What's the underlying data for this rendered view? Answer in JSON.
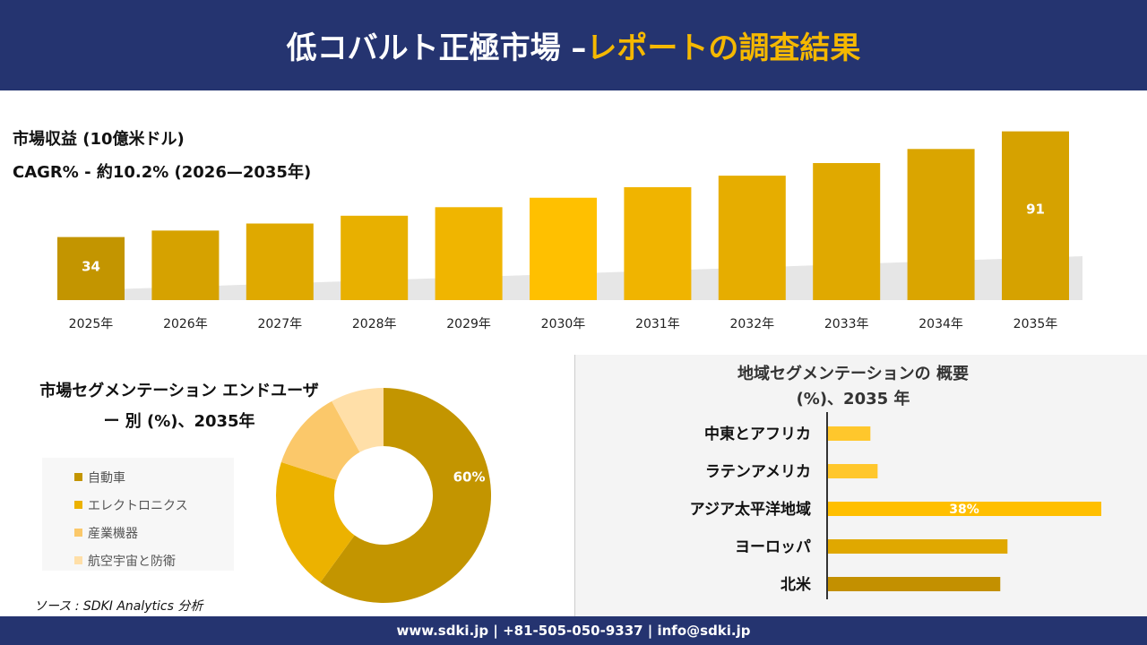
{
  "header": {
    "title_main": "低コバルト正極市場 –",
    "title_accent": "レポートの調査結果"
  },
  "top": {
    "label1": "市場収益 (10億米ドル)",
    "label2": "CAGR% - 約10.2% (2026—2035年)"
  },
  "chart_data": [
    {
      "type": "bar",
      "categories": [
        "2025年",
        "2026年",
        "2027年",
        "2028年",
        "2029年",
        "2030年",
        "2031年",
        "2032年",
        "2033年",
        "2034年",
        "2035年"
      ],
      "values": [
        34,
        37.5,
        41.3,
        45.5,
        50.1,
        55.2,
        60.9,
        67.1,
        73.9,
        81.5,
        91
      ],
      "data_labels": {
        "0": "34",
        "10": "91"
      },
      "ylabel": "",
      "title": ""
    },
    {
      "type": "pie",
      "title": "市場セグメンテーション エンドユーザー 別 (%)、2035年",
      "categories": [
        "自動車",
        "エレクトロニクス",
        "産業機器",
        "航空宇宙と防衛"
      ],
      "values": [
        60,
        20,
        12,
        8
      ],
      "colors": [
        "#c39500",
        "#ecb200",
        "#fbc86a",
        "#ffdfa8"
      ],
      "data_labels": {
        "0": "60%"
      }
    },
    {
      "type": "bar",
      "orientation": "horizontal",
      "title": "地域セグメンテーションの 概要 (%)、2035 年",
      "categories": [
        "中東とアフリカ",
        "ラテンアメリカ",
        "アジア太平洋地域",
        "ヨーロッパ",
        "北米"
      ],
      "values": [
        6,
        7,
        38,
        25,
        24
      ],
      "colors": [
        "#ffc72c",
        "#ffc72c",
        "#ffbf00",
        "#e0a800",
        "#c39000"
      ],
      "data_labels": {
        "2": "38%"
      }
    }
  ],
  "source": "ソース : SDKI Analytics 分析",
  "footer": "www.sdki.jp | +81-505-050-9337 | info@sdki.jp"
}
